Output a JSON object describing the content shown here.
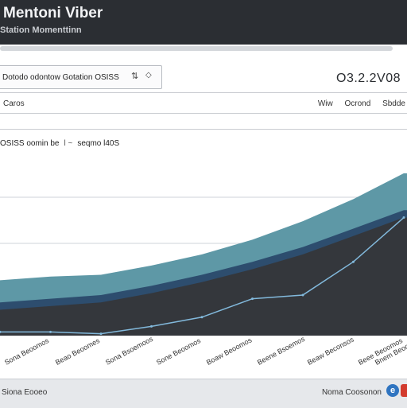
{
  "header": {
    "title": "Mentoni Viber",
    "subtitle": "Station Momenttinn"
  },
  "toolbar": {
    "selector_label": "Dotodo odontow Gotation OSISS",
    "selector_icon": "sort-icon",
    "readout": "O3.2.2V08",
    "left_label": "Caros",
    "right_items": [
      "Wiw",
      "Ocrond",
      "Sbdde"
    ]
  },
  "chart_header": {
    "left": "OSISS oomin be",
    "mid": "l ~",
    "right": "seqmo l40S"
  },
  "chart_data": {
    "type": "area",
    "x": [
      "Sona Beoomos",
      "Beao Beoomes",
      "Sona Bsoemoos",
      "Sone Beoomos",
      "Boaw Beoomos",
      "Beene Bsoemos",
      "Beaw Beconsos",
      "Beee Beoomos",
      "Bnem Beoomos"
    ],
    "series": [
      {
        "name": "",
        "color": "#5e98a6",
        "values": [
          30,
          32,
          33,
          38,
          44,
          52,
          62,
          74,
          88
        ]
      },
      {
        "name": "",
        "color": "#2d4d6e",
        "values": [
          18,
          20,
          22,
          27,
          33,
          40,
          48,
          58,
          68
        ]
      },
      {
        "name": "",
        "color": "#82b9dc",
        "values": [
          2,
          2,
          1,
          5,
          10,
          20,
          22,
          40,
          64
        ]
      }
    ],
    "ylim": [
      0,
      100
    ],
    "grid": true,
    "background": "#34373c"
  },
  "footer": {
    "left": "Siona Eooeo",
    "right": "Noma Coosonon"
  }
}
